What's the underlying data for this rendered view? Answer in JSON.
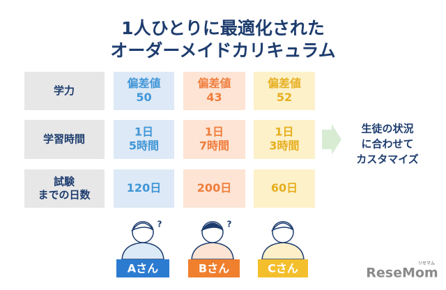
{
  "title": [
    "1人ひとりに最適化された",
    "オーダーメイドカリキュラム"
  ],
  "rows": [
    {
      "label": [
        "学力"
      ],
      "cells": [
        [
          "偏差値",
          "50"
        ],
        [
          "偏差値",
          "43"
        ],
        [
          "偏差値",
          "52"
        ]
      ]
    },
    {
      "label": [
        "学習時間"
      ],
      "cells": [
        [
          "1日",
          "5時間"
        ],
        [
          "1日",
          "7時間"
        ],
        [
          "1日",
          "3時間"
        ]
      ]
    },
    {
      "label": [
        "試験",
        "までの日数"
      ],
      "cells": [
        [
          "120日"
        ],
        [
          "200日"
        ],
        [
          "60日"
        ]
      ]
    }
  ],
  "side_note": [
    "生徒の状況",
    "に合わせて",
    "カスタマイズ"
  ],
  "students": [
    "Aさん",
    "Bさん",
    "Cさん"
  ],
  "logo": "ReseMom",
  "logo_kana": "リセマム"
}
